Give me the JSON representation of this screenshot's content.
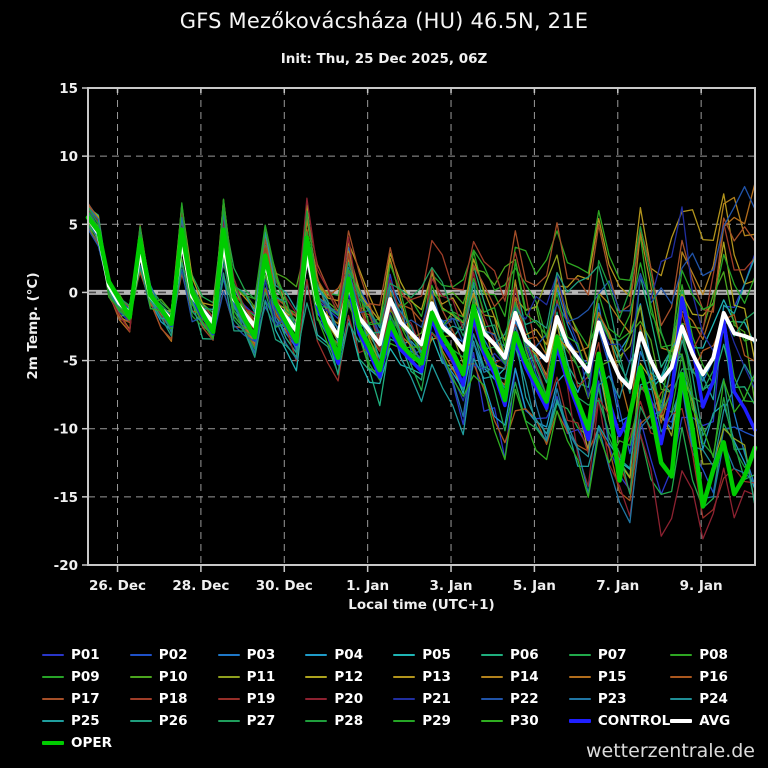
{
  "header": {
    "title": "GFS Mezőkovácsháza (HU) 46.5N, 21E",
    "subtitle": "Init: Thu, 25 Dec 2025, 06Z"
  },
  "watermark": "wetterzentrale.de",
  "chart_data": {
    "type": "line",
    "title": "GFS Mezőkovácsháza (HU) 46.5N, 21E",
    "subtitle": "Init: Thu, 25 Dec 2025, 06Z",
    "xlabel": "Local time (UTC+1)",
    "ylabel": "2m Temp. (°C)",
    "ylim": [
      -20,
      15
    ],
    "yticks": [
      15,
      10,
      5,
      0,
      -5,
      -10,
      -15,
      -20
    ],
    "x_range_hours": [
      0,
      384
    ],
    "x_start": "25 Dec 07:00 local (init 06Z)",
    "time_step_hours": 6,
    "xticks": [
      {
        "hour": 17,
        "label": "26. Dec"
      },
      {
        "hour": 65,
        "label": "28. Dec"
      },
      {
        "hour": 113,
        "label": "30. Dec"
      },
      {
        "hour": 161,
        "label": "1. Jan"
      },
      {
        "hour": 209,
        "label": "3. Jan"
      },
      {
        "hour": 257,
        "label": "5. Jan"
      },
      {
        "hour": 305,
        "label": "7. Jan"
      },
      {
        "hour": 353,
        "label": "9. Jan"
      }
    ],
    "grid": {
      "style": "dashed",
      "vertical_every_days": 2,
      "horizontal_every_deg": 5,
      "zero_line_highlighted": true
    },
    "legend_position": "bottom",
    "series": [
      {
        "name": "CONTROL",
        "color": "#1f1fff",
        "width": 3.5,
        "values": [
          5.5,
          4.2,
          0.5,
          -0.7,
          -1.6,
          3.5,
          -0.3,
          -1.3,
          -2.4,
          4.2,
          -0.2,
          -1.7,
          -3.0,
          4.3,
          -0.5,
          -2.0,
          -3.4,
          2.4,
          -1.0,
          -2.4,
          -3.8,
          3.5,
          -1.0,
          -3.0,
          -5.2,
          0.5,
          -3.0,
          -4.4,
          -6.2,
          -2.8,
          -4.2,
          -5.0,
          -5.8,
          -2.0,
          -3.8,
          -5.0,
          -6.8,
          -1.8,
          -4.5,
          -6.0,
          -8.3,
          -3.5,
          -5.5,
          -7.0,
          -8.5,
          -4.0,
          -6.5,
          -8.5,
          -10.8,
          -5.0,
          -8.0,
          -10.5,
          -9.0,
          -5.5,
          -8.0,
          -11.1,
          -7.5,
          -0.4,
          -4.0,
          -8.4,
          -6.5,
          -2.0,
          -7.3,
          -8.5,
          -10.1
        ]
      },
      {
        "name": "AVG",
        "color": "#ffffff",
        "width": 4,
        "values": [
          5.5,
          4.3,
          0.5,
          -0.8,
          -1.5,
          3.0,
          -0.3,
          -1.2,
          -2.0,
          3.8,
          -0.3,
          -1.3,
          -2.2,
          3.6,
          -0.5,
          -1.5,
          -2.5,
          2.2,
          -0.8,
          -1.8,
          -2.8,
          2.8,
          -0.8,
          -2.0,
          -3.2,
          0.5,
          -1.8,
          -2.8,
          -3.8,
          -0.5,
          -2.2,
          -3.0,
          -3.8,
          -0.8,
          -2.5,
          -3.2,
          -4.2,
          -1.0,
          -3.0,
          -3.8,
          -4.8,
          -1.5,
          -3.5,
          -4.2,
          -5.0,
          -1.8,
          -3.8,
          -4.8,
          -5.8,
          -2.2,
          -4.5,
          -6.2,
          -7.0,
          -3.0,
          -5.0,
          -6.5,
          -5.5,
          -2.5,
          -4.5,
          -6.0,
          -4.8,
          -1.5,
          -3.0,
          -3.2,
          -3.5
        ]
      },
      {
        "name": "OPER",
        "color": "#00cc00",
        "width": 4.5,
        "values": [
          5.5,
          4.5,
          0.8,
          -0.5,
          -1.8,
          3.9,
          -0.2,
          -1.2,
          -2.3,
          4.6,
          0.0,
          -1.6,
          -2.9,
          4.6,
          -0.3,
          -1.9,
          -3.3,
          2.7,
          -0.8,
          -2.2,
          -3.6,
          4.0,
          -0.6,
          -2.8,
          -4.8,
          1.0,
          -2.5,
          -4.0,
          -5.7,
          -2.2,
          -3.8,
          -4.6,
          -5.2,
          -1.5,
          -3.2,
          -4.4,
          -6.0,
          -1.0,
          -4.0,
          -5.5,
          -7.9,
          -3.0,
          -5.0,
          -6.5,
          -8.0,
          -3.3,
          -6.0,
          -8.0,
          -10.0,
          -4.5,
          -8.0,
          -13.8,
          -9.0,
          -5.5,
          -8.5,
          -12.5,
          -13.5,
          -6.0,
          -10.0,
          -15.7,
          -13.0,
          -11.0,
          -14.8,
          -13.5,
          -11.4
        ]
      }
    ],
    "ensemble_members": [
      {
        "name": "P01",
        "color": "#2936c8",
        "seed": 1
      },
      {
        "name": "P02",
        "color": "#1f51c8",
        "seed": 2
      },
      {
        "name": "P03",
        "color": "#1f78c8",
        "seed": 3
      },
      {
        "name": "P04",
        "color": "#1f9bc8",
        "seed": 4
      },
      {
        "name": "P05",
        "color": "#1fb4b4",
        "seed": 5
      },
      {
        "name": "P06",
        "color": "#1fae7d",
        "seed": 6
      },
      {
        "name": "P07",
        "color": "#21a94b",
        "seed": 7
      },
      {
        "name": "P08",
        "color": "#2ea622",
        "seed": 8
      },
      {
        "name": "P09",
        "color": "#27a327",
        "seed": 9
      },
      {
        "name": "P10",
        "color": "#4ba51e",
        "seed": 10
      },
      {
        "name": "P11",
        "color": "#8fa01e",
        "seed": 11
      },
      {
        "name": "P12",
        "color": "#ada31e",
        "seed": 12
      },
      {
        "name": "P13",
        "color": "#b2941c",
        "seed": 13
      },
      {
        "name": "P14",
        "color": "#b2811c",
        "seed": 14
      },
      {
        "name": "P15",
        "color": "#b26d1c",
        "seed": 15
      },
      {
        "name": "P16",
        "color": "#aa571e",
        "seed": 16
      },
      {
        "name": "P17",
        "color": "#a54f28",
        "seed": 17
      },
      {
        "name": "P18",
        "color": "#9f3d28",
        "seed": 18
      },
      {
        "name": "P19",
        "color": "#962e28",
        "seed": 19
      },
      {
        "name": "P20",
        "color": "#8c2130",
        "seed": 20
      },
      {
        "name": "P21",
        "color": "#202ea0",
        "seed": 21
      },
      {
        "name": "P22",
        "color": "#2053a8",
        "seed": 22
      },
      {
        "name": "P23",
        "color": "#2076a4",
        "seed": 23
      },
      {
        "name": "P24",
        "color": "#1f8e96",
        "seed": 24
      },
      {
        "name": "P25",
        "color": "#1f9e9e",
        "seed": 25
      },
      {
        "name": "P26",
        "color": "#1f9e7d",
        "seed": 26
      },
      {
        "name": "P27",
        "color": "#1f9e5c",
        "seed": 27
      },
      {
        "name": "P28",
        "color": "#1f9e3c",
        "seed": 28
      },
      {
        "name": "P29",
        "color": "#25a525",
        "seed": 29
      },
      {
        "name": "P30",
        "color": "#2fae20",
        "seed": 30
      }
    ],
    "ensemble_note": "30 thin perturbation lines; per-member values not individually readable — tight bundle (~±1°C) at start fanning out to roughly -17…+12°C by 9-10 Jan, regenerated around AVG with seeded spread"
  }
}
